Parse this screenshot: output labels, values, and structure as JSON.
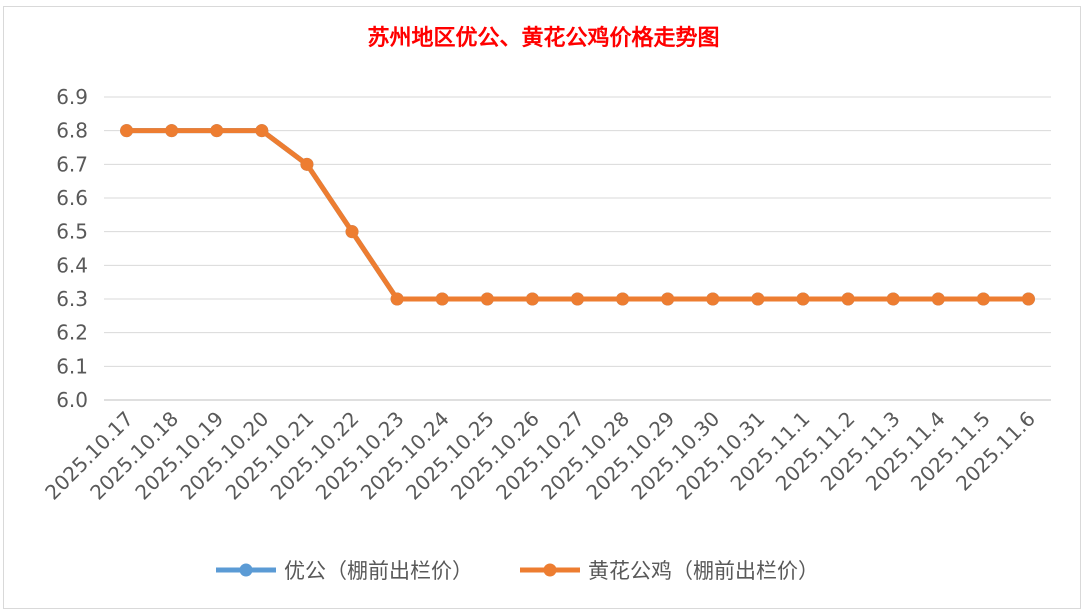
{
  "chart_data": {
    "type": "line",
    "title": "苏州地区优公、黄花公鸡价格走势图",
    "categories": [
      "2025.10.17",
      "2025.10.18",
      "2025.10.19",
      "2025.10.20",
      "2025.10.21",
      "2025.10.22",
      "2025.10.23",
      "2025.10.24",
      "2025.10.25",
      "2025.10.26",
      "2025.10.27",
      "2025.10.28",
      "2025.10.29",
      "2025.10.30",
      "2025.10.31",
      "2025.11.1",
      "2025.11.2",
      "2025.11.3",
      "2025.11.4",
      "2025.11.5",
      "2025.11.6"
    ],
    "series": [
      {
        "name": "优公（棚前出栏价）",
        "color": "#5b9bd5",
        "values": [
          6.8,
          6.8,
          6.8,
          6.8,
          6.7,
          6.5,
          6.3,
          6.3,
          6.3,
          6.3,
          6.3,
          6.3,
          6.3,
          6.3,
          6.3,
          6.3,
          6.3,
          6.3,
          6.3,
          6.3,
          6.3
        ]
      },
      {
        "name": "黄花公鸡（棚前出栏价）",
        "color": "#ed7d31",
        "values": [
          6.8,
          6.8,
          6.8,
          6.8,
          6.7,
          6.5,
          6.3,
          6.3,
          6.3,
          6.3,
          6.3,
          6.3,
          6.3,
          6.3,
          6.3,
          6.3,
          6.3,
          6.3,
          6.3,
          6.3,
          6.3
        ]
      }
    ],
    "ylim": [
      6.0,
      6.9
    ],
    "yticks": [
      "6.0",
      "6.1",
      "6.2",
      "6.3",
      "6.4",
      "6.5",
      "6.6",
      "6.7",
      "6.8",
      "6.9"
    ],
    "grid": true,
    "legend": "bottom"
  }
}
